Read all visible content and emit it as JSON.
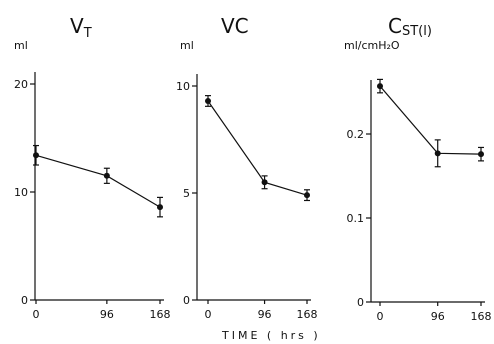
{
  "chart_data": [
    {
      "type": "line",
      "title": "V",
      "title_sub": "T",
      "ylabel": "ml",
      "x": [
        0,
        96,
        168
      ],
      "xticks": [
        "0",
        "96",
        "168"
      ],
      "xlim": [
        0,
        168
      ],
      "ylim": [
        0,
        20
      ],
      "yticks": [
        0,
        10,
        20
      ],
      "ytick_labels": [
        "0",
        "10",
        "20"
      ],
      "series": [
        {
          "values": [
            13.4,
            11.5,
            8.6
          ],
          "error": [
            0.9,
            0.7,
            0.9
          ]
        }
      ],
      "grid": false
    },
    {
      "type": "line",
      "title": "VC",
      "title_sub": "",
      "ylabel": "ml",
      "x": [
        0,
        96,
        168
      ],
      "xticks": [
        "0",
        "96",
        "168"
      ],
      "xlim": [
        0,
        168
      ],
      "ylim": [
        0,
        10
      ],
      "yticks": [
        0,
        5,
        10
      ],
      "ytick_labels": [
        "0",
        "5",
        "10"
      ],
      "series": [
        {
          "values": [
            9.3,
            5.5,
            4.9
          ],
          "error": [
            0.25,
            0.3,
            0.25
          ]
        }
      ],
      "grid": false
    },
    {
      "type": "line",
      "title": "C",
      "title_sub": "ST(l)",
      "ylabel": "ml/cmH₂O",
      "x": [
        0,
        96,
        168
      ],
      "xticks": [
        "0",
        "96",
        "168"
      ],
      "xlim": [
        0,
        168
      ],
      "ylim": [
        0,
        0.25
      ],
      "yticks": [
        0,
        0.1,
        0.2
      ],
      "ytick_labels": [
        "0",
        "0.1",
        "0.2"
      ],
      "series": [
        {
          "values": [
            0.257,
            0.177,
            0.176
          ],
          "error": [
            0.008,
            0.016,
            0.008
          ]
        }
      ],
      "grid": false
    }
  ],
  "xaxis_title": "TIME   ( hrs )"
}
